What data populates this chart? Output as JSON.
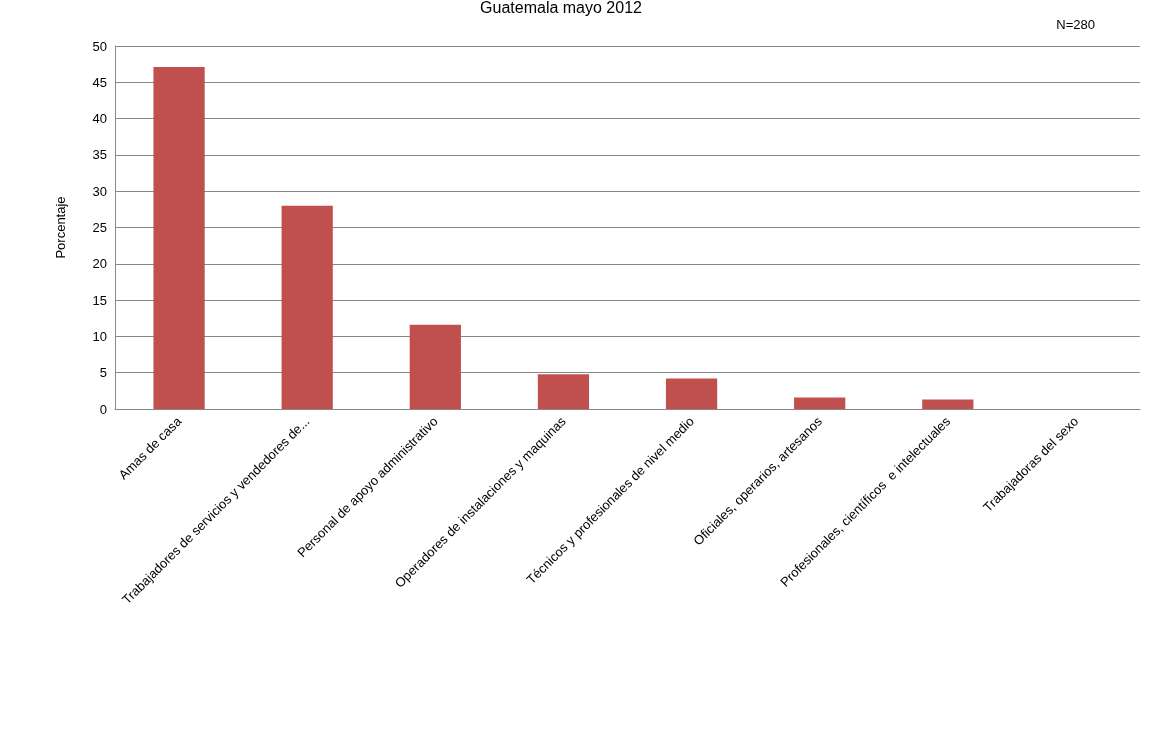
{
  "chart_data": {
    "type": "bar",
    "title": "Guatemala mayo 2012",
    "ylabel": "Porcentaje",
    "annotations": [
      "N=280"
    ],
    "categories": [
      "Amas de casa",
      "Trabajadores de servicios y vendedores de...",
      "Personal de apoyo administrativo",
      "Operadores de instalaciones y maquinas",
      "Técnicos y profesionales de nivel medio",
      "Oficiales, operarios, artesanos",
      "Profesionales, científicos  e intelectuales",
      "Trabajadoras del sexo"
    ],
    "values": [
      47.1,
      28.0,
      11.6,
      4.8,
      4.2,
      1.6,
      1.3,
      0
    ],
    "color": "#c0504d",
    "ylim": [
      0,
      50
    ],
    "yticks": [
      0,
      5,
      10,
      15,
      20,
      25,
      30,
      35,
      40,
      45,
      50
    ],
    "grid": "y"
  }
}
